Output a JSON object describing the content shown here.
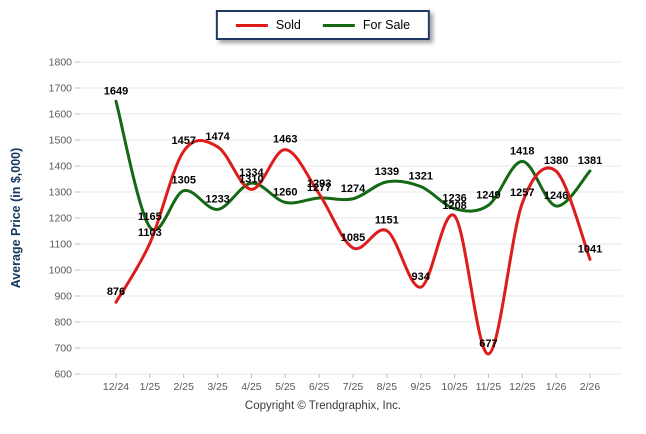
{
  "footer": {
    "copyright": "Copyright © Trendgraphix, Inc."
  },
  "chart_data": {
    "type": "line",
    "title": "",
    "xlabel": "",
    "ylabel": "Average Price (in $,000)",
    "ylim": [
      600,
      1800
    ],
    "ytick_step": 100,
    "grid": "horizontal",
    "legend_position": "top-center",
    "line_style": "smooth",
    "point_labels": true,
    "categories": [
      "12/24",
      "1/25",
      "2/25",
      "3/25",
      "4/25",
      "5/25",
      "6/25",
      "7/25",
      "8/25",
      "9/25",
      "10/25",
      "11/25",
      "12/25",
      "1/26",
      "2/26"
    ],
    "series": [
      {
        "name": "Sold",
        "color": "#dd1c1c",
        "values": [
          876,
          1103,
          1457,
          1474,
          1310,
          1463,
          1293,
          1085,
          1151,
          934,
          1208,
          677,
          1257,
          1380,
          1041
        ]
      },
      {
        "name": "For Sale",
        "color": "#156915",
        "values": [
          1649,
          1165,
          1305,
          1233,
          1334,
          1260,
          1277,
          1274,
          1339,
          1321,
          1236,
          1249,
          1418,
          1246,
          1381
        ]
      }
    ]
  }
}
